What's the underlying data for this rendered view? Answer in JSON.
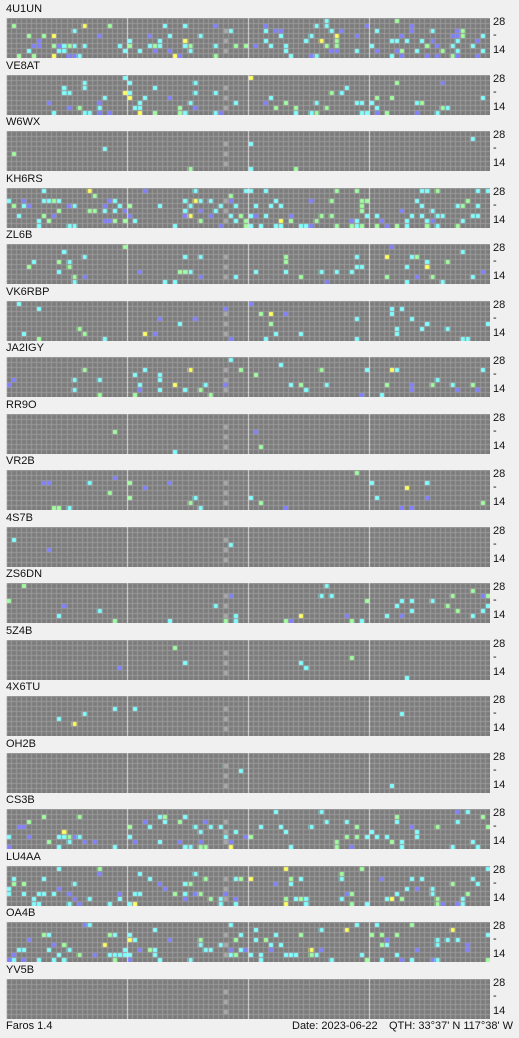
{
  "app": {
    "name": "Faros 1.4"
  },
  "status": {
    "date": "Date: 2023-06-22",
    "qth": "QTH: 33°37' N  117°38' W"
  },
  "scale": {
    "top_label": "28",
    "mid_label": "-",
    "bottom_label": "14"
  },
  "beacons": [
    {
      "call": "4U1UN"
    },
    {
      "call": "VE8AT"
    },
    {
      "call": "W6WX"
    },
    {
      "call": "KH6RS"
    },
    {
      "call": "ZL6B"
    },
    {
      "call": "VK6RBP"
    },
    {
      "call": "JA2IGY"
    },
    {
      "call": "RR9O"
    },
    {
      "call": "VR2B"
    },
    {
      "call": "4S7B"
    },
    {
      "call": "ZS6DN"
    },
    {
      "call": "5Z4B"
    },
    {
      "call": "4X6TU"
    },
    {
      "call": "OH2B"
    },
    {
      "call": "CS3B"
    },
    {
      "call": "LU4AA"
    },
    {
      "call": "OA4B"
    },
    {
      "call": "YV5B"
    }
  ],
  "colors": {
    "grid_bg": "#7c7c7c",
    "cell_line": "#9a9a9a",
    "hour_line": "#e0e0e0",
    "activity_cyan": "#7fffff",
    "activity_green": "#9fff9f",
    "activity_blue": "#8080ff",
    "activity_yellow": "#ffff60"
  }
}
